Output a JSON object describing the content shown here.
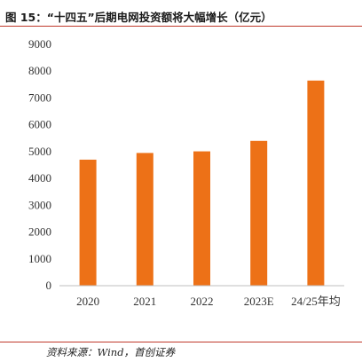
{
  "header": {
    "title": "图 15：“十四五”后期电网投资额将大幅增长（亿元）"
  },
  "footer": {
    "source": "资料来源：Wind，首创证券"
  },
  "colors": {
    "bar": "#ED7117",
    "axis": "#bfbfbf",
    "rule": "#c0392b"
  },
  "chart_data": {
    "type": "bar",
    "categories": [
      "2020",
      "2021",
      "2022",
      "2023E",
      "24/25年均"
    ],
    "values": [
      4700,
      4950,
      5010,
      5400,
      7650
    ],
    "title": "",
    "xlabel": "",
    "ylabel": "",
    "ylim": [
      0,
      9000
    ],
    "yticks": [
      0,
      1000,
      2000,
      3000,
      4000,
      5000,
      6000,
      7000,
      8000,
      9000
    ],
    "grid": false,
    "legend": false
  }
}
